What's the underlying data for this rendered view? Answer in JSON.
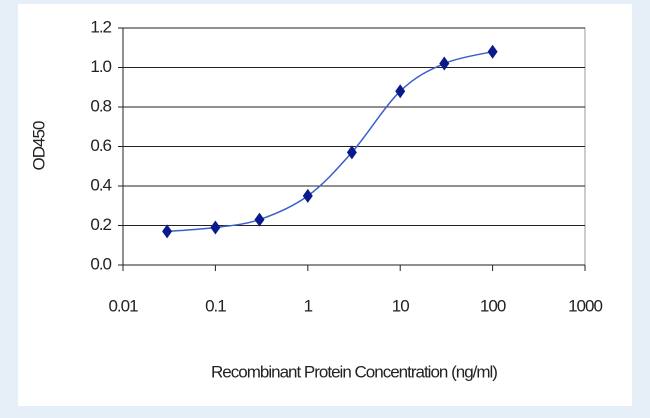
{
  "chart_data": {
    "type": "scatter",
    "xlabel": "Recombinant Protein Concentration (ng/ml)",
    "ylabel": "OD450",
    "x": [
      0.03,
      0.1,
      0.3,
      1,
      3,
      10,
      30,
      100
    ],
    "values": [
      0.17,
      0.19,
      0.23,
      0.35,
      0.57,
      0.88,
      1.02,
      1.08
    ],
    "line_color": "#3a5fcd",
    "marker_color": "#0a1a8c",
    "xscale": "log",
    "xlim": [
      0.01,
      1000
    ],
    "xticks": [
      0.01,
      0.1,
      1,
      10,
      100,
      1000
    ],
    "ylim": [
      0,
      1.2
    ],
    "yticks": [
      {
        "value": 0,
        "label": "0.0"
      },
      0.2,
      0.4,
      0.6,
      0.8,
      {
        "value": 1,
        "label": "1.0"
      },
      1.2
    ],
    "grid": true
  }
}
